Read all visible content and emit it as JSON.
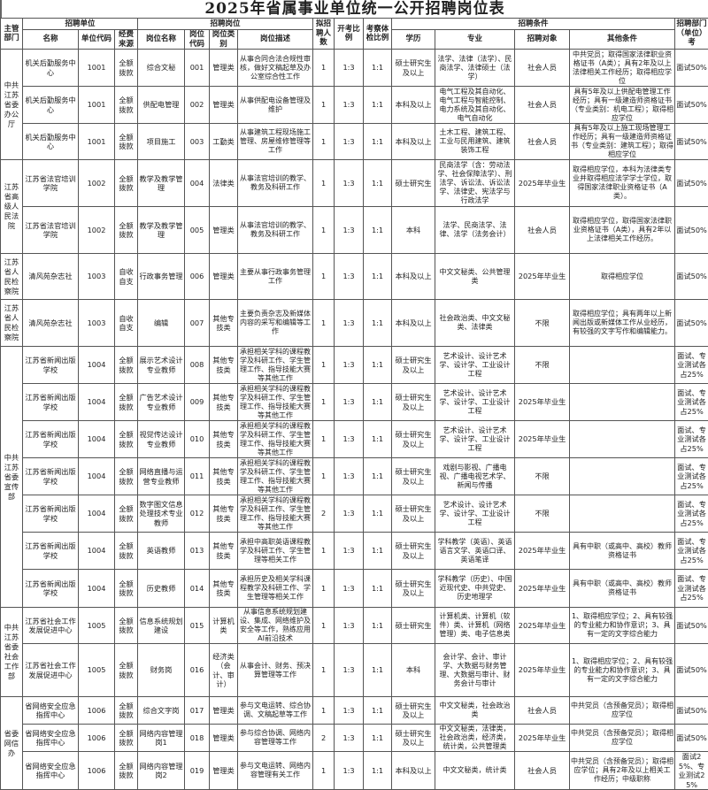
{
  "title": "2025年省属事业单位统一公开招聘岗位表",
  "headers": {
    "dept": "主管部门",
    "unit_group": "招聘单位",
    "post_group": "招聘岗位",
    "cond_group": "招聘条件",
    "count": "拟招聘人数",
    "exam_ratio": "开考比例",
    "check_ratio": "考察体检比例",
    "last": "招聘部门（单位）考",
    "unit_name": "名称",
    "unit_code": "单位代码",
    "funding": "经费来源",
    "post_name": "岗位名称",
    "post_code": "岗位代码",
    "post_type": "岗位类别",
    "post_desc": "岗位描述",
    "education": "学历",
    "major": "专业",
    "target": "招聘对象",
    "other": "其他条件"
  },
  "depts": [
    {
      "name": "中共江苏省委办公厅",
      "span": 3
    },
    {
      "name": "江苏省高级人民法院",
      "span": 2
    },
    {
      "name": "江苏省人民检察院",
      "span": 1
    },
    {
      "name": "江苏省人民检察院",
      "span": 1
    },
    {
      "name": "中共江苏省委宣传部",
      "span": 7
    },
    {
      "name": "中共江苏省委社会工作部",
      "span": 2
    },
    {
      "name": "省委网信办",
      "span": 3
    }
  ],
  "rows": [
    {
      "unit": "机关后勤服务中心",
      "code": "1001",
      "fund": "全额拨款",
      "post": "综合文秘",
      "pcode": "001",
      "type": "管理类",
      "desc": "从事合同合法合规性审核，做好文稿起草及办公室综合性工作",
      "n": "1",
      "r1": "1:3",
      "r2": "1:1",
      "edu": "硕士研究生及以上",
      "major": "法学、法律（法学）、民商法学、法律硕士（法学）",
      "target": "社会人员",
      "other": "中共党员；取得国家法律职业资格证书（A类）；具有2年及以上法律相关工作经历；取得相应学位",
      "exam": "面试50%"
    },
    {
      "unit": "机关后勤服务中心",
      "code": "1001",
      "fund": "全额拨款",
      "post": "供配电管理",
      "pcode": "002",
      "type": "管理类",
      "desc": "从事供配电设备管理及维护",
      "n": "1",
      "r1": "1:3",
      "r2": "1:1",
      "edu": "本科及以上",
      "major": "电气工程及其自动化、电气工程与智能控制、电力系统及其自动化、电气自动化",
      "target": "社会人员",
      "other": "具有5年及以上供配电管理工作经历；具有一级建造师资格证书（专业类别：机电工程）；取得相应学位",
      "exam": "面试50%"
    },
    {
      "unit": "机关后勤服务中心",
      "code": "1001",
      "fund": "全额拨款",
      "post": "项目施工",
      "pcode": "003",
      "type": "工勤类",
      "desc": "从事建筑工程现场施工管理、房屋维修管理等工作",
      "n": "1",
      "r1": "1:3",
      "r2": "1:1",
      "edu": "本科及以上",
      "major": "土木工程、建筑工程、工业与民用建筑、建筑装饰工程",
      "target": "社会人员",
      "other": "具有5年及以上施工现场管理工作经历；具有一级建造师资格证书（专业类别：建筑工程）；取得相应学位",
      "exam": "面试50%"
    },
    {
      "unit": "江苏省法官培训学院",
      "code": "1002",
      "fund": "全额拨款",
      "post": "教学及教学管理",
      "pcode": "004",
      "type": "法律类",
      "desc": "从事法官培训的教学、教务及科研工作",
      "n": "1",
      "r1": "1:3",
      "r2": "1:1",
      "edu": "硕士研究生",
      "major": "民商法学（含：劳动法学、社会保障法学）、刑法学、诉讼法、诉讼法学、法律史、宪法学与行政法学",
      "target": "2025年毕业生",
      "other": "取得相应学位，本科为法律类专业并取得相应法学学士学位，取得国家法律职业资格证书（A类）。",
      "exam": "面试50%"
    },
    {
      "unit": "江苏省法官培训学院",
      "code": "1002",
      "fund": "全额拨款",
      "post": "教学及教学管理",
      "pcode": "005",
      "type": "管理类",
      "desc": "从事法官培训的教学、教务及科研工作",
      "n": "1",
      "r1": "1:3",
      "r2": "1:1",
      "edu": "本科",
      "major": "法学、民商法学、法律、法学（法务会计）",
      "target": "社会人员",
      "other": "取得相应学位，取得国家法律职业资格证书（A类），具有2年以上法律相关工作经历。",
      "exam": "面试50%"
    },
    {
      "unit": "清风苑杂志社",
      "code": "1003",
      "fund": "自收自支",
      "post": "行政事务管理",
      "pcode": "006",
      "type": "管理类",
      "desc": "主要从事行政事务管理工作",
      "n": "1",
      "r1": "1:3",
      "r2": "1:1",
      "edu": "本科及以上",
      "major": "中文文秘类、公共管理类",
      "target": "2025年毕业生",
      "other": "取得相应学位",
      "exam": "面试50%"
    },
    {
      "unit": "清风苑杂志社",
      "code": "1003",
      "fund": "自收自支",
      "post": "编辑",
      "pcode": "007",
      "type": "其他专技类",
      "desc": "主要负责杂志及新媒体内容的采写和编辑等工作",
      "n": "1",
      "r1": "1:3",
      "r2": "1:1",
      "edu": "本科及以上",
      "major": "社会政治类、中文文秘类、法律类",
      "target": "不限",
      "other": "取得相应学位；具有两年以上新闻出版或新媒体工作从业经历，有较强的文字写作和编辑能力。",
      "exam": "面试50%"
    },
    {
      "unit": "江苏省新闻出版学校",
      "code": "1004",
      "fund": "全额拨款",
      "post": "展示艺术设计专业教师",
      "pcode": "008",
      "type": "其他专技类",
      "desc": "承担相关学科的课程教学及科研工作、学生管理工作、指导技能大赛等其他工作",
      "n": "1",
      "r1": "1:3",
      "r2": "1:1",
      "edu": "硕士研究生及以上",
      "major": "艺术设计、设计艺术学、设计学、工业设计工程",
      "target": "不限",
      "other": "",
      "exam": "面试、专业测试各占25%"
    },
    {
      "unit": "江苏省新闻出版学校",
      "code": "1004",
      "fund": "全额拨款",
      "post": "广告艺术设计专业教师",
      "pcode": "009",
      "type": "其他专技类",
      "desc": "承担相关学科的课程教学及科研工作、学生管理工作、指导技能大赛等其他工作",
      "n": "1",
      "r1": "1:3",
      "r2": "1:1",
      "edu": "硕士研究生及以上",
      "major": "艺术设计、设计艺术学、设计学、工业设计工程",
      "target": "2025年毕业生",
      "other": "",
      "exam": "面试、专业测试各占25%"
    },
    {
      "unit": "江苏省新闻出版学校",
      "code": "1004",
      "fund": "全额拨款",
      "post": "视觉传达设计专业教师",
      "pcode": "010",
      "type": "其他专技类",
      "desc": "承担相关学科的课程教学及科研工作、学生管理工作、指导技能大赛等其他工作",
      "n": "1",
      "r1": "1:3",
      "r2": "1:1",
      "edu": "硕士研究生及以上",
      "major": "艺术设计、设计艺术学、设计学、工业设计工程",
      "target": "2025年毕业生",
      "other": "",
      "exam": "面试、专业测试各占25%"
    },
    {
      "unit": "江苏省新闻出版学校",
      "code": "1004",
      "fund": "全额拨款",
      "post": "网络直播与运营专业教师",
      "pcode": "011",
      "type": "其他专技类",
      "desc": "承担相关学科的课程教学及科研工作、学生管理工作、指导技能大赛等其他工作",
      "n": "1",
      "r1": "1:3",
      "r2": "1:1",
      "edu": "硕士研究生及以上",
      "major": "戏剧与影视、广播电视、广播电视艺术学、新闻与传播",
      "target": "不限",
      "other": "",
      "exam": "面试、专业测试各占25%"
    },
    {
      "unit": "江苏省新闻出版学校",
      "code": "1004",
      "fund": "全额拨款",
      "post": "数字图文信息处理技术专业教师",
      "pcode": "012",
      "type": "其他专技类",
      "desc": "承担相关学科的课程教学及科研工作、学生管理工作、指导技能大赛等其他工作",
      "n": "2",
      "r1": "1:3",
      "r2": "1:1",
      "edu": "硕士研究生及以上",
      "major": "艺术设计、设计艺术学、设计学、工业设计工程",
      "target": "不限",
      "other": "",
      "exam": "面试、专业测试各占25%"
    },
    {
      "unit": "江苏省新闻出版学校",
      "code": "1004",
      "fund": "全额拨款",
      "post": "英语教师",
      "pcode": "013",
      "type": "其他专技类",
      "desc": "承担中高职英语课程教学及科研工作、学生管理等相关工作",
      "n": "1",
      "r1": "1:3",
      "r2": "1:1",
      "edu": "硕士研究生及以上",
      "major": "学科教学（英语）、英语语言文学、英语口译、英语笔译",
      "target": "2025年毕业生",
      "other": "具有中职（或高中、高校）教师资格证书",
      "exam": "面试、专业测试各占25%"
    },
    {
      "unit": "江苏省新闻出版学校",
      "code": "1004",
      "fund": "全额拨款",
      "post": "历史教师",
      "pcode": "014",
      "type": "其他专技类",
      "desc": "承担历史及相关学科课程教学及科研工作、学生管理等相关工作",
      "n": "1",
      "r1": "1:3",
      "r2": "1:1",
      "edu": "硕士研究生及以上",
      "major": "学科教学（历史）、中国近现代史、中共党史、历史地理学",
      "target": "2025年毕业生",
      "other": "具有中职（或高中、高校）教师资格证书",
      "exam": "面试、专业测试各占25%"
    },
    {
      "unit": "江苏省社会工作发展促进中心",
      "code": "1005",
      "fund": "全额拨款",
      "post": "信息系统规划建设",
      "pcode": "015",
      "type": "计算机类",
      "desc": "从事信息系统规划建设、集成、网络维护及安全等工作，熟练应用AI前沿技术",
      "n": "1",
      "r1": "1:3",
      "r2": "1:1",
      "edu": "硕士研究生",
      "major": "计算机类、计算机（软件）类、计算机（网络管理）类、电子信息类",
      "target": "2025年毕业生",
      "other": "1、取得相应学位；2、具有较强的专业能力和协作意识；3、具有一定的文字综合能力",
      "exam": "面试50%"
    },
    {
      "unit": "江苏省社会工作发展促进中心",
      "code": "1005",
      "fund": "全额拨款",
      "post": "财务岗",
      "pcode": "016",
      "type": "经济类（会计、审计）",
      "desc": "从事会计、财务、预决算管理等工作",
      "n": "1",
      "r1": "1:3",
      "r2": "1:1",
      "edu": "本科",
      "major": "会计学、会计、审计学、大数据与财务管理、大数据与审计、财务会计与审计",
      "target": "2025年毕业生",
      "other": "1、取得相应学位；2、具有较强的专业能力和协作意识；3、具有一定的文字综合能力",
      "exam": "面试50%"
    },
    {
      "unit": "省网络安全应急指挥中心",
      "code": "1006",
      "fund": "全额拨款",
      "post": "综合文字岗",
      "pcode": "017",
      "type": "管理类",
      "desc": "参与文电运转、综合协调、文稿起草等工作",
      "n": "1",
      "r1": "1:3",
      "r2": "1:1",
      "edu": "硕士研究生及以上",
      "major": "中文文秘类，社会政治类",
      "target": "社会人员",
      "other": "中共党员（含预备党员）；取得相应学位",
      "exam": "面试50%"
    },
    {
      "unit": "省网络安全应急指挥中心",
      "code": "1006",
      "fund": "全额拨款",
      "post": "网络内容管理岗1",
      "pcode": "018",
      "type": "管理类",
      "desc": "参与综合协调、网络内容管理等工作",
      "n": "2",
      "r1": "1:3",
      "r2": "1:1",
      "edu": "硕士研究生及以上",
      "major": "中文文秘类，法律类，社会政治类，经济类，统计类，公共管理类",
      "target": "2025年毕业生",
      "other": "中共党员（含预备党员）；取得相应学位",
      "exam": "面试50%"
    },
    {
      "unit": "省网络安全应急指挥中心",
      "code": "1006",
      "fund": "全额拨款",
      "post": "网络内容管理岗2",
      "pcode": "019",
      "type": "管理类",
      "desc": "参与文电运转、网络内容管理有关工作",
      "n": "1",
      "r1": "1:3",
      "r2": "1:1",
      "edu": "本科及以上",
      "major": "中文文秘类，统计类",
      "target": "社会人员",
      "other": "中共党员（含预备党员）；取得相应学位；具有2年及以上相关工作经历；中级职称",
      "exam": "面试25%、专业测试25%"
    }
  ]
}
